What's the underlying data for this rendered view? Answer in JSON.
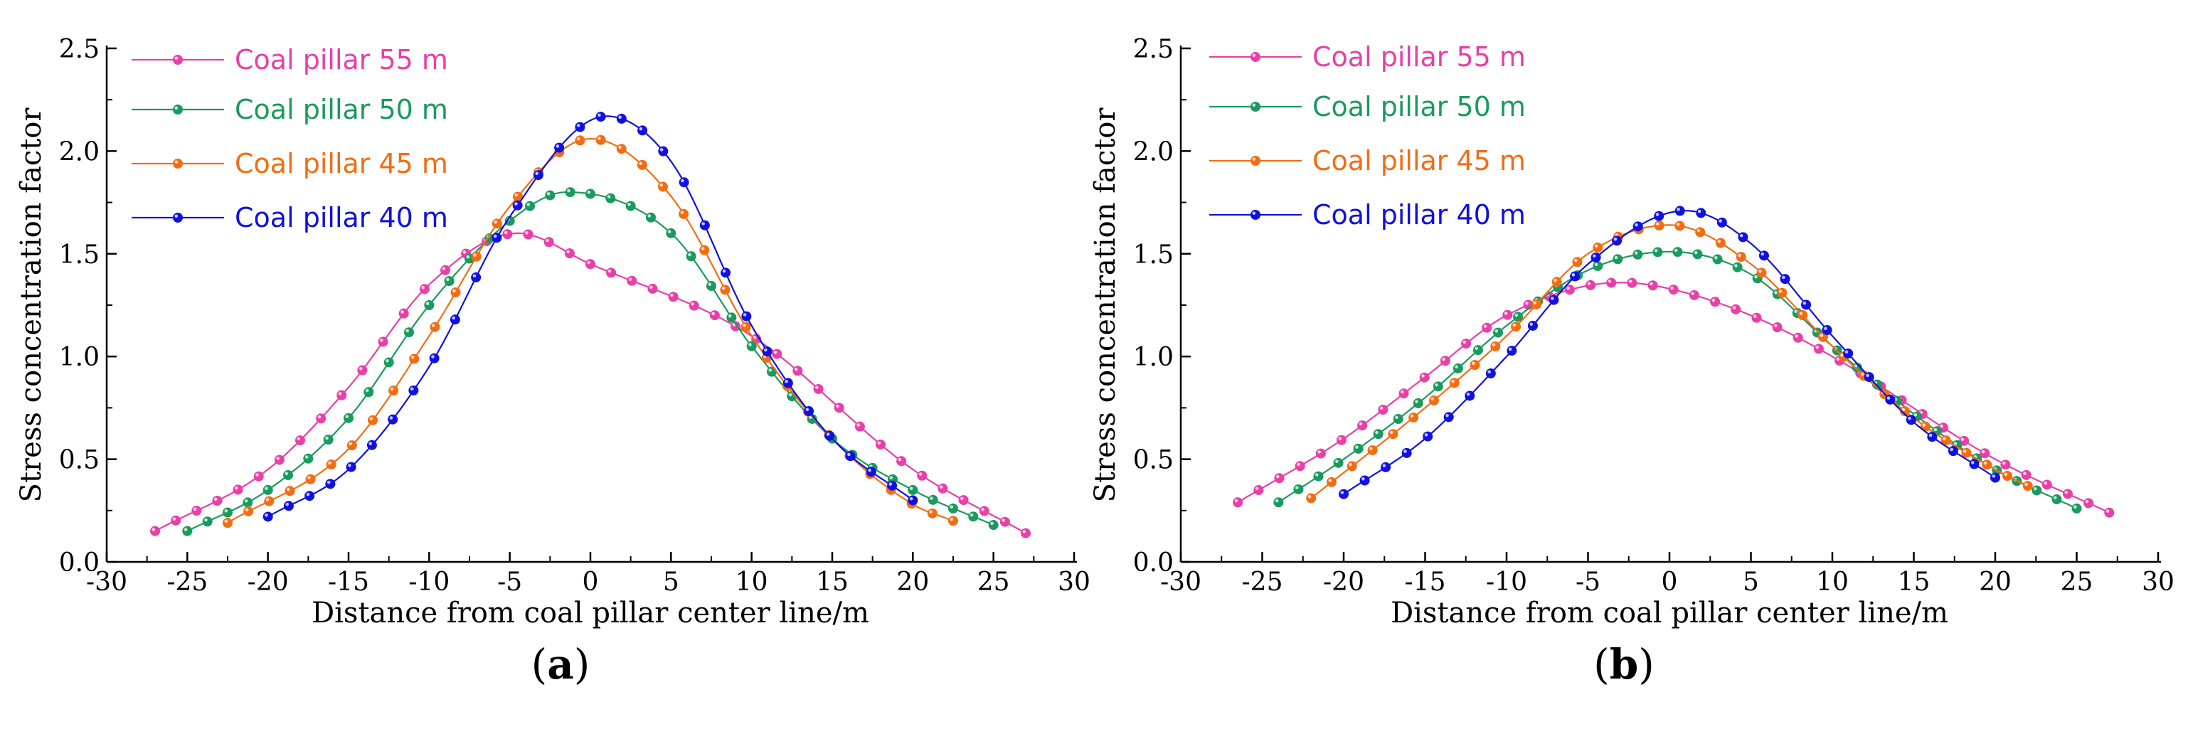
{
  "colors": {
    "pillar_55": "#e83fa8",
    "pillar_50": "#1a9a5e",
    "pillar_45": "#f26d12",
    "pillar_40": "#1010e0"
  },
  "panel_labels": [
    {
      "open": "(",
      "letter": "a",
      "close": ")"
    },
    {
      "open": "(",
      "letter": "b",
      "close": ")"
    }
  ],
  "chart_data": [
    {
      "type": "line",
      "panel": "a",
      "title": "",
      "xlabel": "Distance from coal pillar center line/m",
      "ylabel": "Stress concentration factor",
      "xlim": [
        -30,
        30
      ],
      "ylim": [
        0,
        2.5
      ],
      "xticks": [
        "-30",
        "-25",
        "-20",
        "-15",
        "-10",
        "-5",
        "0",
        "5",
        "10",
        "15",
        "20",
        "25",
        "30"
      ],
      "yticks": [
        "0.0",
        "0.5",
        "1.0",
        "1.5",
        "2.0",
        "2.5"
      ],
      "legend_position": "top-left",
      "series": [
        {
          "name": "Coal pillar 55 m",
          "color": "#e83fa8",
          "x_range": [
            -27,
            27
          ],
          "points": 43,
          "x": [
            -27,
            -20,
            -15,
            -10,
            -4.5,
            0,
            10,
            20,
            27
          ],
          "y": [
            0.15,
            0.45,
            0.85,
            1.35,
            1.6,
            1.45,
            1.1,
            0.45,
            0.14
          ]
        },
        {
          "name": "Coal pillar 50 m",
          "color": "#1a9a5e",
          "x_range": [
            -25,
            25
          ],
          "points": 41,
          "x": [
            -25,
            -20,
            -15,
            -10,
            -5,
            -1.5,
            5,
            10,
            15,
            20,
            25
          ],
          "y": [
            0.15,
            0.35,
            0.7,
            1.25,
            1.66,
            1.8,
            1.6,
            1.05,
            0.6,
            0.35,
            0.18
          ]
        },
        {
          "name": "Coal pillar 45 m",
          "color": "#f26d12",
          "x_range": [
            -22.5,
            22.5
          ],
          "points": 36,
          "x": [
            -22.5,
            -15,
            -10,
            -5,
            0,
            5,
            10,
            15,
            20,
            22.5
          ],
          "y": [
            0.19,
            0.55,
            1.1,
            1.73,
            2.06,
            1.78,
            1.1,
            0.6,
            0.28,
            0.2
          ]
        },
        {
          "name": "Coal pillar 40 m",
          "color": "#1010e0",
          "x_range": [
            -20,
            20
          ],
          "points": 32,
          "x": [
            -20,
            -15,
            -10,
            -5,
            1,
            5,
            10,
            15,
            20
          ],
          "y": [
            0.22,
            0.45,
            0.95,
            1.68,
            2.17,
            1.95,
            1.15,
            0.6,
            0.3
          ]
        }
      ]
    },
    {
      "type": "line",
      "panel": "b",
      "title": "",
      "xlabel": "Distance from coal pillar center line/m",
      "ylabel": "Stress concentration factor",
      "xlim": [
        -30,
        30
      ],
      "ylim": [
        0,
        2.5
      ],
      "xticks": [
        "-30",
        "-25",
        "-20",
        "-15",
        "-10",
        "-5",
        "0",
        "5",
        "10",
        "15",
        "20",
        "25",
        "30"
      ],
      "yticks": [
        "0.0",
        "0.5",
        "1.0",
        "1.5",
        "2.0",
        "2.5"
      ],
      "legend_position": "top-left",
      "series": [
        {
          "name": "Coal pillar 55 m",
          "color": "#e83fa8",
          "x_range": [
            -26.5,
            27
          ],
          "points": 43,
          "x": [
            -26.5,
            -20,
            -15,
            -10,
            -3,
            0,
            5,
            10,
            20,
            27
          ],
          "y": [
            0.29,
            0.6,
            0.9,
            1.2,
            1.36,
            1.33,
            1.2,
            1.0,
            0.5,
            0.24
          ]
        },
        {
          "name": "Coal pillar 50 m",
          "color": "#1a9a5e",
          "x_range": [
            -24,
            25
          ],
          "points": 41,
          "x": [
            -24,
            -20,
            -15,
            -10,
            -5,
            0,
            5,
            10,
            15,
            20,
            25
          ],
          "y": [
            0.29,
            0.5,
            0.8,
            1.15,
            1.42,
            1.51,
            1.4,
            1.05,
            0.72,
            0.45,
            0.26
          ]
        },
        {
          "name": "Coal pillar 45 m",
          "color": "#f26d12",
          "x_range": [
            -22,
            22
          ],
          "points": 36,
          "x": [
            -22,
            -15,
            -10,
            -5,
            0,
            5,
            10,
            15,
            20,
            22
          ],
          "y": [
            0.31,
            0.75,
            1.1,
            1.5,
            1.64,
            1.45,
            1.05,
            0.7,
            0.45,
            0.37
          ]
        },
        {
          "name": "Coal pillar 40 m",
          "color": "#1010e0",
          "x_range": [
            -20,
            20
          ],
          "points": 32,
          "x": [
            -20,
            -15,
            -10,
            -5,
            1,
            5,
            10,
            15,
            20
          ],
          "y": [
            0.33,
            0.6,
            1.0,
            1.45,
            1.71,
            1.55,
            1.1,
            0.68,
            0.41
          ]
        }
      ]
    }
  ]
}
